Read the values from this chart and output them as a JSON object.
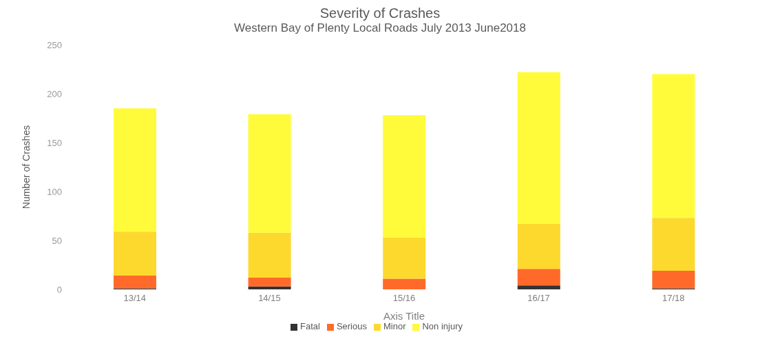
{
  "chart_data": {
    "type": "bar",
    "title": "Severity of Crashes",
    "subtitle": "Western Bay of Plenty Local Roads July 2013 June2018",
    "xlabel": "Axis Title",
    "ylabel": "Number of Crashes",
    "categories": [
      "13/14",
      "14/15",
      "15/16",
      "16/17",
      "17/18"
    ],
    "stacked": true,
    "series": [
      {
        "name": "Fatal",
        "color": "#333333",
        "values": [
          1,
          3,
          0,
          4,
          1
        ]
      },
      {
        "name": "Serious",
        "color": "#ff6a2a",
        "values": [
          13,
          9,
          11,
          17,
          18
        ]
      },
      {
        "name": "Minor",
        "color": "#fdd92e",
        "values": [
          45,
          46,
          42,
          46,
          54
        ]
      },
      {
        "name": "Non injury",
        "color": "#fffb3a",
        "values": [
          126,
          121,
          125,
          155,
          147
        ]
      }
    ],
    "ylim": [
      0,
      250
    ],
    "yticks": [
      0,
      50,
      100,
      150,
      200,
      250
    ],
    "grid": false,
    "legend": "bottom"
  }
}
